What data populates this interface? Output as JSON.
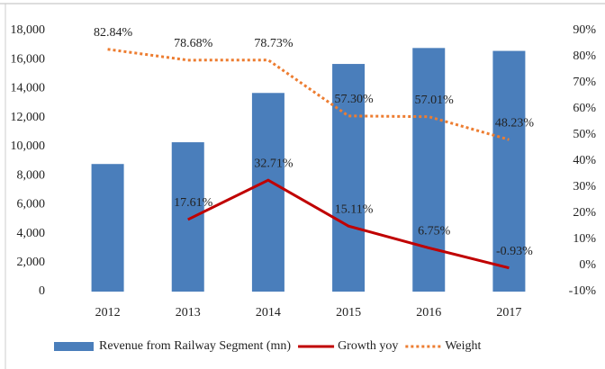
{
  "chart_data": {
    "type": "bar",
    "categories": [
      "2012",
      "2013",
      "2014",
      "2015",
      "2016",
      "2017"
    ],
    "series": [
      {
        "name": "Revenue from Railway Segment (mn)",
        "type": "bar",
        "color": "#4a7ebb",
        "axis": "y",
        "values": [
          8800,
          10300,
          13700,
          15700,
          16800,
          16600
        ]
      },
      {
        "name": "Growth yoy",
        "type": "line",
        "color": "#c00000",
        "axis": "y2",
        "dash": "solid",
        "values": [
          null,
          17.61,
          32.71,
          15.11,
          6.75,
          -0.93
        ],
        "value_labels": [
          null,
          "17.61%",
          "32.71%",
          "15.11%",
          "6.75%",
          "-0.93%"
        ]
      },
      {
        "name": "Weight",
        "type": "line",
        "color": "#ed7d31",
        "axis": "y2",
        "dash": "dotted",
        "values": [
          82.84,
          78.68,
          78.73,
          57.3,
          57.01,
          48.23
        ],
        "value_labels": [
          "82.84%",
          "78.68%",
          "78.73%",
          "57.30%",
          "57.01%",
          "48.23%"
        ]
      }
    ],
    "ylim": [
      0,
      18000
    ],
    "yticks": [
      0,
      {
        "value": 2000,
        "label": "2,000"
      },
      {
        "value": 4000,
        "label": "4,000"
      },
      {
        "value": 6000,
        "label": "6,000"
      },
      {
        "value": 8000,
        "label": "8,000"
      },
      {
        "value": 10000,
        "label": "10,000"
      },
      {
        "value": 12000,
        "label": "12,000"
      },
      {
        "value": 14000,
        "label": "14,000"
      },
      {
        "value": 16000,
        "label": "16,000"
      },
      {
        "value": 18000,
        "label": "18,000"
      }
    ],
    "y2lim": [
      -10,
      90
    ],
    "y2ticks": [
      {
        "value": -10,
        "label": "-10%"
      },
      {
        "value": 0,
        "label": "0%"
      },
      {
        "value": 10,
        "label": "10%"
      },
      {
        "value": 20,
        "label": "20%"
      },
      {
        "value": 30,
        "label": "30%"
      },
      {
        "value": 40,
        "label": "40%"
      },
      {
        "value": 50,
        "label": "50%"
      },
      {
        "value": 60,
        "label": "60%"
      },
      {
        "value": 70,
        "label": "70%"
      },
      {
        "value": 80,
        "label": "80%"
      },
      {
        "value": 90,
        "label": "90%"
      }
    ],
    "legend": "bottom"
  }
}
